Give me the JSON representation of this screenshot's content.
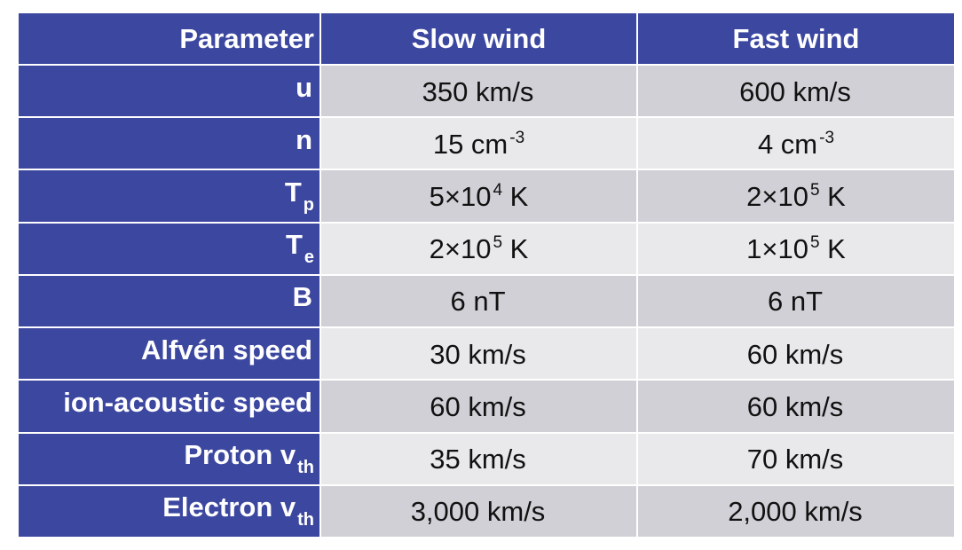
{
  "headers": {
    "parameter": "Parameter",
    "slow": "Slow wind",
    "fast": "Fast wind"
  },
  "rows": [
    {
      "param": {
        "main": "u",
        "sub": ""
      },
      "slow": {
        "main": "350 km/s",
        "sup": "",
        "tail": ""
      },
      "fast": {
        "main": "600 km/s",
        "sup": "",
        "tail": ""
      }
    },
    {
      "param": {
        "main": "n",
        "sub": ""
      },
      "slow": {
        "main": "15 cm",
        "sup": "-3",
        "tail": ""
      },
      "fast": {
        "main": "4 cm",
        "sup": "-3",
        "tail": ""
      }
    },
    {
      "param": {
        "main": "T",
        "sub": "p"
      },
      "slow": {
        "main": "5×10",
        "sup": "4",
        "tail": " K"
      },
      "fast": {
        "main": "2×10",
        "sup": "5",
        "tail": " K"
      }
    },
    {
      "param": {
        "main": "T",
        "sub": "e"
      },
      "slow": {
        "main": "2×10",
        "sup": "5",
        "tail": " K"
      },
      "fast": {
        "main": "1×10",
        "sup": "5",
        "tail": " K"
      }
    },
    {
      "param": {
        "main": "B",
        "sub": ""
      },
      "slow": {
        "main": "6 nT",
        "sup": "",
        "tail": ""
      },
      "fast": {
        "main": "6 nT",
        "sup": "",
        "tail": ""
      }
    },
    {
      "param": {
        "main": "Alfvén speed",
        "sub": ""
      },
      "slow": {
        "main": "30 km/s",
        "sup": "",
        "tail": ""
      },
      "fast": {
        "main": "60 km/s",
        "sup": "",
        "tail": ""
      }
    },
    {
      "param": {
        "main": "ion-acoustic speed",
        "sub": ""
      },
      "slow": {
        "main": "60 km/s",
        "sup": "",
        "tail": ""
      },
      "fast": {
        "main": "60 km/s",
        "sup": "",
        "tail": ""
      }
    },
    {
      "param": {
        "main": "Proton v",
        "sub": "th"
      },
      "slow": {
        "main": "35 km/s",
        "sup": "",
        "tail": ""
      },
      "fast": {
        "main": "70 km/s",
        "sup": "",
        "tail": ""
      }
    },
    {
      "param": {
        "main": "Electron v",
        "sub": "th"
      },
      "slow": {
        "main": "3,000 km/s",
        "sup": "",
        "tail": ""
      },
      "fast": {
        "main": "2,000 km/s",
        "sup": "",
        "tail": ""
      }
    }
  ],
  "colors": {
    "header_bg": "#3c47a0",
    "row_odd_bg": "#d0d0d6",
    "row_even_bg": "#e9e9ec"
  }
}
